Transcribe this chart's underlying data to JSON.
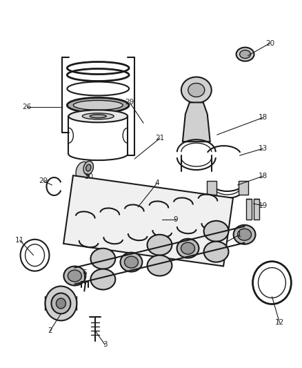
{
  "background_color": "#ffffff",
  "fig_width": 4.38,
  "fig_height": 5.33,
  "dpi": 100,
  "line_color": "#1a1a1a",
  "label_color": "#222222",
  "label_fontsize": 7.5,
  "part_fill": "#d8d8d8",
  "part_fill2": "#c0c0c0"
}
